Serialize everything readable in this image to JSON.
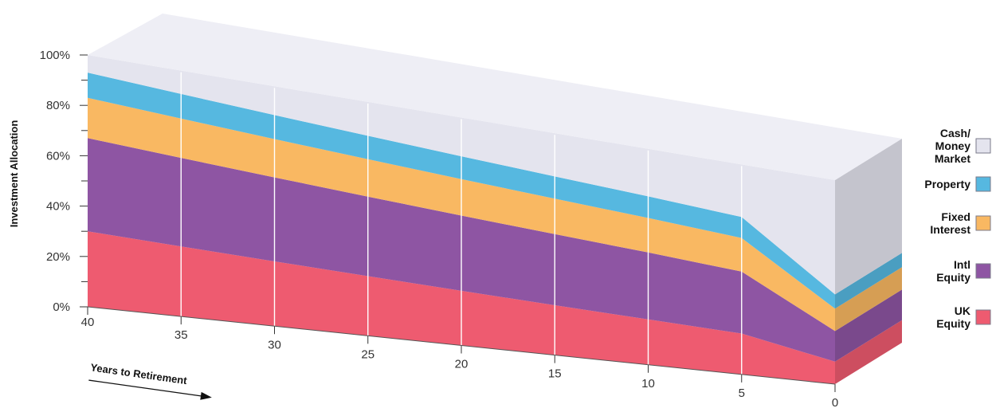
{
  "chart_data": {
    "type": "area",
    "stacked": true,
    "view": "3d",
    "ylabel": "Investment Allocation",
    "xlabel": "Years to Retirement",
    "y_ticks": [
      "0%",
      "20%",
      "40%",
      "60%",
      "80%",
      "100%"
    ],
    "ylim": [
      0,
      100
    ],
    "x": [
      40,
      35,
      30,
      25,
      20,
      15,
      10,
      5,
      0
    ],
    "x_ticks": [
      "40",
      "35",
      "30",
      "25",
      "20",
      "15",
      "10",
      "5",
      "0"
    ],
    "legend_position": "right",
    "series": [
      {
        "name": "UK Equity",
        "label_lines": [
          "UK",
          "Equity"
        ],
        "color": "#ee5b70",
        "values": [
          30,
          28.5,
          27,
          25.5,
          24,
          22.5,
          21,
          19.5,
          11
        ]
      },
      {
        "name": "Intl Equity",
        "label_lines": [
          "Intl",
          "Equity"
        ],
        "color": "#8e55a3",
        "values": [
          37,
          36,
          35,
          34,
          33,
          32,
          31,
          29.5,
          15
        ]
      },
      {
        "name": "Fixed Interest",
        "label_lines": [
          "Fixed",
          "Interest"
        ],
        "color": "#f9b862",
        "values": [
          16,
          16,
          16,
          16,
          16,
          16,
          16,
          16,
          11
        ]
      },
      {
        "name": "Property",
        "label_lines": [
          "Property"
        ],
        "color": "#56b8e0",
        "values": [
          10,
          10,
          10,
          10,
          10,
          10,
          10,
          10,
          7
        ]
      },
      {
        "name": "Cash/ Money Market",
        "label_lines": [
          "Cash/",
          "Money",
          "Market"
        ],
        "color": "#e4e4ee",
        "values": [
          7,
          9.5,
          12,
          14.5,
          17,
          19.5,
          22,
          25,
          56
        ]
      }
    ]
  }
}
